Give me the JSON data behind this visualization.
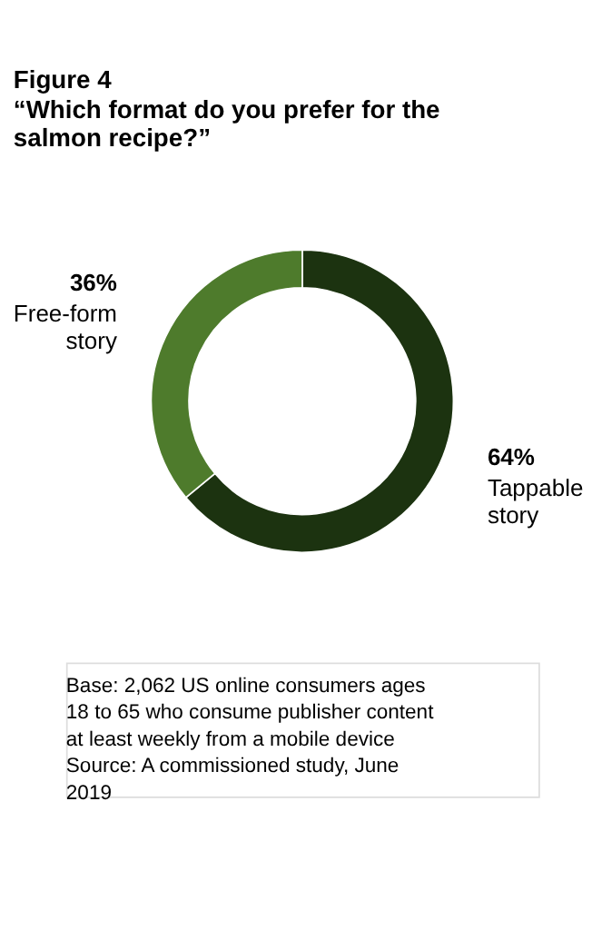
{
  "chart_data": {
    "type": "donut",
    "title": "Figure 4",
    "subtitle": "“Which format do you prefer for the salmon recipe?”",
    "categories": [
      "Tappable story",
      "Free-form story"
    ],
    "values": [
      64,
      36
    ],
    "value_labels": [
      "64%",
      "36%"
    ],
    "colors": [
      "#1c3310",
      "#4e7b2c"
    ],
    "annotations": [
      "Base: 2,062 US online consumers ages 18 to 65 who consume publisher content at least weekly from a mobile device",
      "Source: A commissioned study, June 2019"
    ]
  }
}
